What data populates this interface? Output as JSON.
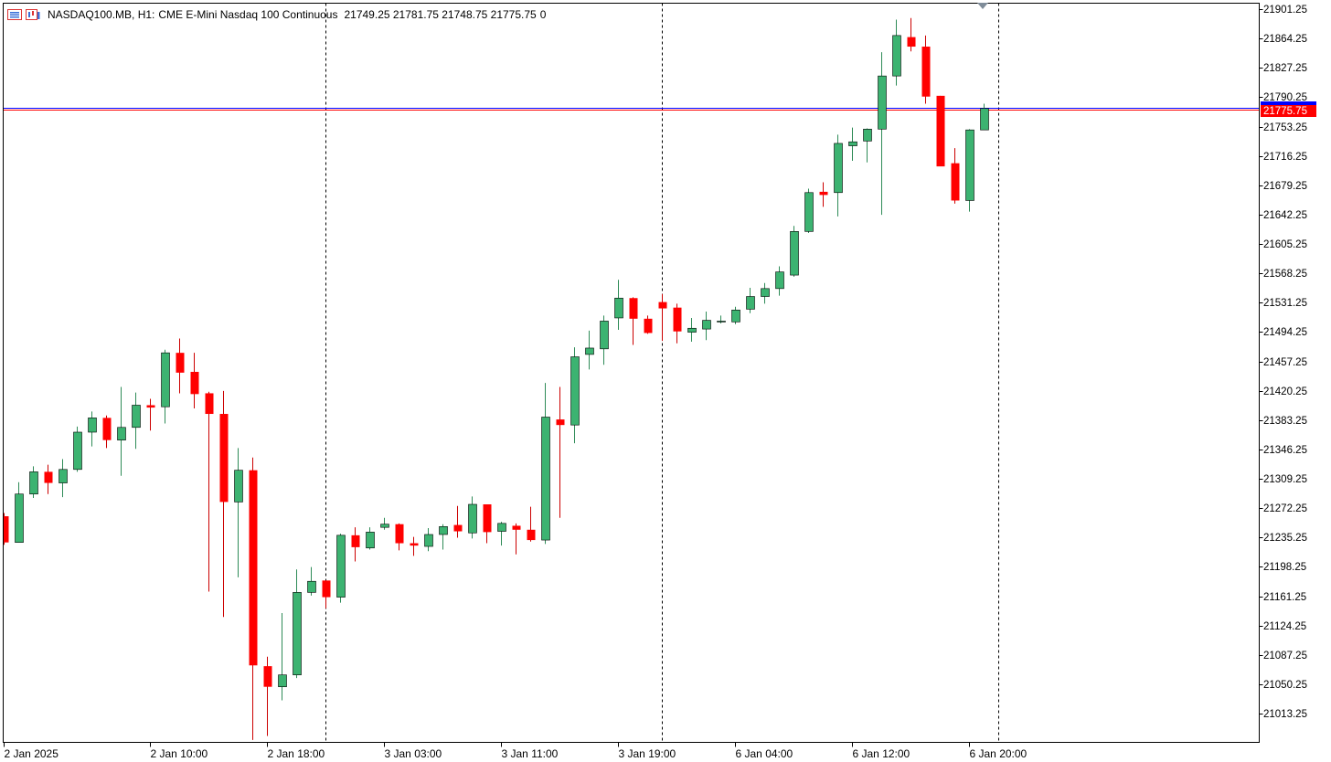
{
  "header": {
    "symbol": "NASDAQ100.MB, H1:",
    "description": "CME E-Mini Nasdaq 100 Continuous",
    "ohlc": "21749.25 21781.75 21748.75 21775.75",
    "volume": "0"
  },
  "colors": {
    "bull": "#3cb371",
    "bear": "#ff0000",
    "price_line": "#0000ff",
    "price_tag": "#ff0000",
    "grid": "#000000",
    "background": "#ffffff"
  },
  "chart_data": {
    "type": "candlestick",
    "symbol": "NASDAQ100.MB",
    "timeframe": "H1",
    "current_price": 21775.75,
    "current_price_label": "21775.75",
    "ylim": [
      20980,
      21910
    ],
    "y_ticks": [
      "21901.25",
      "21864.25",
      "21827.25",
      "21790.25",
      "21753.25",
      "21716.25",
      "21679.25",
      "21642.25",
      "21605.25",
      "21568.25",
      "21531.25",
      "21494.25",
      "21457.25",
      "21420.25",
      "21383.25",
      "21346.25",
      "21309.25",
      "21272.25",
      "21235.25",
      "21198.25",
      "21161.25",
      "21124.25",
      "21087.25",
      "21050.25",
      "21013.25"
    ],
    "x_tick_labels": [
      {
        "bar": 0,
        "label": "2 Jan 2025"
      },
      {
        "bar": 10,
        "label": "2 Jan 10:00"
      },
      {
        "bar": 18,
        "label": "2 Jan 18:00"
      },
      {
        "bar": 26,
        "label": "3 Jan 03:00"
      },
      {
        "bar": 34,
        "label": "3 Jan 11:00"
      },
      {
        "bar": 42,
        "label": "3 Jan 19:00"
      },
      {
        "bar": 50,
        "label": "6 Jan 04:00"
      },
      {
        "bar": 58,
        "label": "6 Jan 12:00"
      },
      {
        "bar": 66,
        "label": "6 Jan 20:00"
      }
    ],
    "period_separators": [
      22,
      45,
      68
    ],
    "candles": [
      [
        21262,
        21266,
        21226,
        21229
      ],
      [
        21229,
        21305,
        21229,
        21290
      ],
      [
        21290,
        21325,
        21285,
        21318
      ],
      [
        21318,
        21327,
        21290,
        21304
      ],
      [
        21304,
        21334,
        21286,
        21321
      ],
      [
        21321,
        21375,
        21318,
        21368
      ],
      [
        21368,
        21394,
        21350,
        21386
      ],
      [
        21386,
        21389,
        21348,
        21358
      ],
      [
        21358,
        21425,
        21313,
        21374
      ],
      [
        21374,
        21418,
        21347,
        21402
      ],
      [
        21402,
        21410,
        21370,
        21399
      ],
      [
        21400,
        21472,
        21379,
        21468
      ],
      [
        21468,
        21486,
        21417,
        21443
      ],
      [
        21444,
        21468,
        21398,
        21416
      ],
      [
        21417,
        21419,
        21167,
        21391
      ],
      [
        21391,
        21420,
        21135,
        21280
      ],
      [
        21280,
        21348,
        21185,
        21320
      ],
      [
        21320,
        21336,
        20980,
        21074
      ],
      [
        21073,
        21085,
        20985,
        21047
      ],
      [
        21047,
        21140,
        21030,
        21062
      ],
      [
        21062,
        21195,
        21058,
        21166
      ],
      [
        21166,
        21198,
        21162,
        21180
      ],
      [
        21181,
        21180,
        21146,
        21160
      ],
      [
        21160,
        21240,
        21153,
        21238
      ],
      [
        21238,
        21248,
        21205,
        21223
      ],
      [
        21222,
        21248,
        21220,
        21242
      ],
      [
        21248,
        21260,
        21245,
        21252
      ],
      [
        21252,
        21253,
        21219,
        21228
      ],
      [
        21228,
        21236,
        21212,
        21225
      ],
      [
        21224,
        21247,
        21218,
        21239
      ],
      [
        21239,
        21252,
        21220,
        21249
      ],
      [
        21251,
        21275,
        21235,
        21243
      ],
      [
        21241,
        21287,
        21234,
        21277
      ],
      [
        21277,
        21276,
        21228,
        21242
      ],
      [
        21243,
        21255,
        21225,
        21253
      ],
      [
        21250,
        21253,
        21214,
        21245
      ],
      [
        21245,
        21274,
        21230,
        21232
      ],
      [
        21232,
        21430,
        21227,
        21387
      ],
      [
        21384,
        21425,
        21260,
        21377
      ],
      [
        21377,
        21475,
        21354,
        21463
      ],
      [
        21466,
        21496,
        21447,
        21474
      ],
      [
        21473,
        21515,
        21453,
        21508
      ],
      [
        21512,
        21560,
        21497,
        21537
      ],
      [
        21537,
        21538,
        21478,
        21511
      ],
      [
        21511,
        21515,
        21492,
        21493
      ],
      [
        21532,
        21542,
        21483,
        21524
      ],
      [
        21525,
        21530,
        21480,
        21495
      ],
      [
        21494,
        21512,
        21482,
        21499
      ],
      [
        21498,
        21520,
        21484,
        21509
      ],
      [
        21508,
        21515,
        21505,
        21508
      ],
      [
        21507,
        21526,
        21504,
        21522
      ],
      [
        21523,
        21550,
        21518,
        21539
      ],
      [
        21539,
        21556,
        21530,
        21549
      ],
      [
        21549,
        21577,
        21540,
        21570
      ],
      [
        21566,
        21628,
        21564,
        21621
      ],
      [
        21621,
        21675,
        21619,
        21670
      ],
      [
        21671,
        21683,
        21652,
        21667
      ],
      [
        21670,
        21743,
        21640,
        21732
      ],
      [
        21729,
        21752,
        21710,
        21734
      ],
      [
        21735,
        21751,
        21708,
        21750
      ],
      [
        21750,
        21847,
        21642,
        21817
      ],
      [
        21817,
        21888,
        21805,
        21868
      ],
      [
        21866,
        21890,
        21848,
        21854
      ],
      [
        21854,
        21868,
        21782,
        21791
      ],
      [
        21792,
        21792,
        21707,
        21703
      ],
      [
        21707,
        21726,
        21656,
        21660
      ],
      [
        21660,
        21750,
        21646,
        21749
      ],
      [
        21749,
        21782,
        21749,
        21776
      ]
    ]
  }
}
